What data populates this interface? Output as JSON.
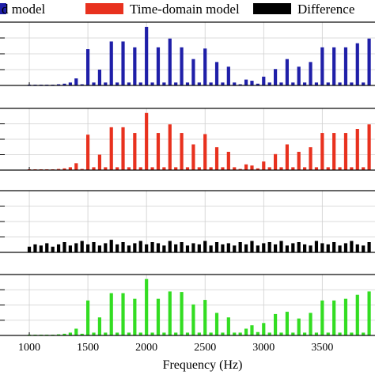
{
  "chart_data": {
    "type": "bar",
    "xlabel": "Frequency (Hz)",
    "x_ticks": [
      1000,
      1500,
      2000,
      2500,
      3000,
      3500
    ],
    "xlim": [
      750,
      3950
    ],
    "grid": true,
    "legend": {
      "placement": "top",
      "entries": [
        {
          "label": "d model",
          "color": "#1f1fa8"
        },
        {
          "label": "Time-domain model",
          "color": "#e8311e"
        },
        {
          "label": "Difference",
          "color": "#000000"
        }
      ]
    },
    "x": [
      1000,
      1050,
      1100,
      1150,
      1200,
      1250,
      1300,
      1350,
      1400,
      1450,
      1500,
      1550,
      1600,
      1650,
      1700,
      1750,
      1800,
      1850,
      1900,
      1950,
      2000,
      2050,
      2100,
      2150,
      2200,
      2250,
      2300,
      2350,
      2400,
      2450,
      2500,
      2550,
      2600,
      2650,
      2700,
      2750,
      2800,
      2850,
      2900,
      2950,
      3000,
      3050,
      3100,
      3150,
      3200,
      3250,
      3300,
      3350,
      3400,
      3450,
      3500,
      3550,
      3600,
      3650,
      3700,
      3750,
      3800,
      3850,
      3900
    ],
    "series": [
      {
        "name": "d model",
        "color": "#1f1fa8",
        "values": [
          0.01,
          0.01,
          0.01,
          0.01,
          0.01,
          0.02,
          0.03,
          0.05,
          0.12,
          0.02,
          0.62,
          0.05,
          0.27,
          0.05,
          0.75,
          0.05,
          0.75,
          0.05,
          0.65,
          0.05,
          1.0,
          0.05,
          0.65,
          0.05,
          0.8,
          0.05,
          0.65,
          0.05,
          0.45,
          0.05,
          0.63,
          0.05,
          0.4,
          0.05,
          0.32,
          0.05,
          0.02,
          0.1,
          0.08,
          0.03,
          0.15,
          0.05,
          0.28,
          0.05,
          0.45,
          0.05,
          0.32,
          0.05,
          0.4,
          0.05,
          0.65,
          0.05,
          0.65,
          0.05,
          0.65,
          0.05,
          0.72,
          0.05,
          0.8
        ]
      },
      {
        "name": "Time-domain model",
        "color": "#e8311e",
        "values": [
          0.01,
          0.01,
          0.01,
          0.01,
          0.01,
          0.02,
          0.03,
          0.05,
          0.12,
          0.02,
          0.62,
          0.05,
          0.27,
          0.05,
          0.75,
          0.05,
          0.75,
          0.05,
          0.65,
          0.05,
          1.0,
          0.05,
          0.65,
          0.05,
          0.8,
          0.05,
          0.65,
          0.05,
          0.45,
          0.05,
          0.63,
          0.05,
          0.4,
          0.05,
          0.32,
          0.05,
          0.02,
          0.1,
          0.08,
          0.03,
          0.15,
          0.05,
          0.28,
          0.05,
          0.45,
          0.05,
          0.32,
          0.05,
          0.4,
          0.05,
          0.65,
          0.05,
          0.65,
          0.05,
          0.65,
          0.05,
          0.72,
          0.05,
          0.8
        ]
      },
      {
        "name": "Difference",
        "color": "#000000",
        "values": [
          0.1,
          0.14,
          0.12,
          0.16,
          0.1,
          0.14,
          0.18,
          0.12,
          0.16,
          0.2,
          0.14,
          0.18,
          0.12,
          0.16,
          0.22,
          0.14,
          0.18,
          0.12,
          0.16,
          0.2,
          0.14,
          0.18,
          0.16,
          0.12,
          0.2,
          0.14,
          0.18,
          0.12,
          0.16,
          0.14,
          0.2,
          0.12,
          0.18,
          0.14,
          0.16,
          0.12,
          0.18,
          0.14,
          0.2,
          0.12,
          0.16,
          0.18,
          0.14,
          0.2,
          0.12,
          0.16,
          0.18,
          0.14,
          0.12,
          0.2,
          0.16,
          0.14,
          0.18,
          0.12,
          0.16,
          0.2,
          0.14,
          0.12,
          0.18
        ]
      },
      {
        "name": "",
        "color": "#33dd22",
        "values": [
          0.01,
          0.01,
          0.01,
          0.01,
          0.01,
          0.02,
          0.03,
          0.05,
          0.12,
          0.03,
          0.62,
          0.05,
          0.32,
          0.05,
          0.75,
          0.05,
          0.75,
          0.05,
          0.65,
          0.05,
          1.0,
          0.05,
          0.65,
          0.05,
          0.78,
          0.05,
          0.77,
          0.05,
          0.55,
          0.05,
          0.63,
          0.05,
          0.4,
          0.05,
          0.32,
          0.05,
          0.05,
          0.12,
          0.18,
          0.06,
          0.22,
          0.05,
          0.38,
          0.05,
          0.42,
          0.05,
          0.3,
          0.05,
          0.4,
          0.05,
          0.62,
          0.05,
          0.62,
          0.05,
          0.65,
          0.05,
          0.72,
          0.05,
          0.78
        ]
      }
    ]
  }
}
